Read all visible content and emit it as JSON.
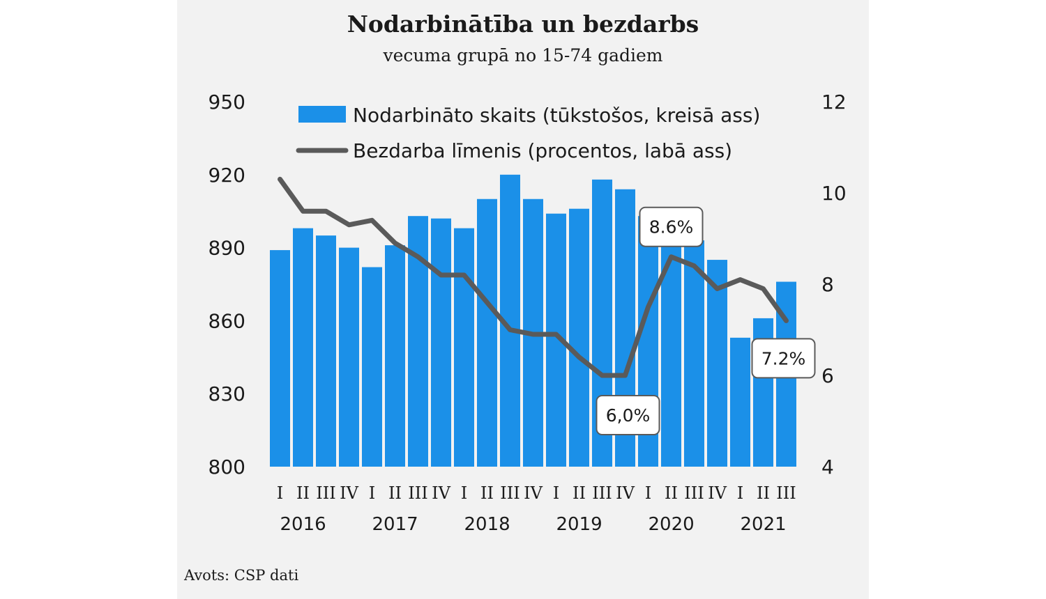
{
  "chart_data": {
    "type": "bar",
    "title": "Nodarbinātība un bezdarbs",
    "subtitle": "vecuma grupā no 15-74 gadiem",
    "source": "Avots: CSP dati",
    "quarters": [
      "I",
      "II",
      "III",
      "IV",
      "I",
      "II",
      "III",
      "IV",
      "I",
      "II",
      "III",
      "IV",
      "I",
      "II",
      "III",
      "IV",
      "I",
      "II",
      "III",
      "IV",
      "I",
      "II",
      "III"
    ],
    "years": [
      "2016",
      "2017",
      "2018",
      "2019",
      "2020",
      "2021"
    ],
    "left_axis": {
      "ylim": [
        800,
        950
      ],
      "ticks": [
        "800",
        "830",
        "860",
        "890",
        "920",
        "950"
      ]
    },
    "right_axis": {
      "ylim": [
        4,
        12
      ],
      "ticks": [
        "4",
        "6",
        "8",
        "10",
        "12"
      ]
    },
    "series": [
      {
        "name": "Nodarbināto skaits (tūkstošos, kreisā ass)",
        "type": "bar",
        "axis": "left",
        "color": "#1b90e8",
        "values": [
          889,
          898,
          895,
          890,
          882,
          891,
          903,
          902,
          898,
          910,
          920,
          910,
          904,
          906,
          918,
          914,
          903,
          901,
          893,
          885,
          853,
          861,
          876
        ]
      },
      {
        "name": "Bezdarba līmenis (procentos, labā ass)",
        "type": "line",
        "axis": "right",
        "color": "#5a5a5a",
        "values": [
          10.3,
          9.6,
          9.6,
          9.3,
          9.4,
          8.9,
          8.6,
          8.2,
          8.2,
          7.6,
          7.0,
          6.9,
          6.9,
          6.4,
          6.0,
          6.0,
          7.5,
          8.6,
          8.4,
          7.9,
          8.1,
          7.9,
          7.2
        ]
      }
    ],
    "annotations": [
      {
        "text": "8.6%",
        "index": 17,
        "value": 8.6
      },
      {
        "text": "6,0%",
        "index": 15,
        "value": 6.0
      },
      {
        "text": "7.2%",
        "index": 22,
        "value": 7.2
      }
    ]
  }
}
